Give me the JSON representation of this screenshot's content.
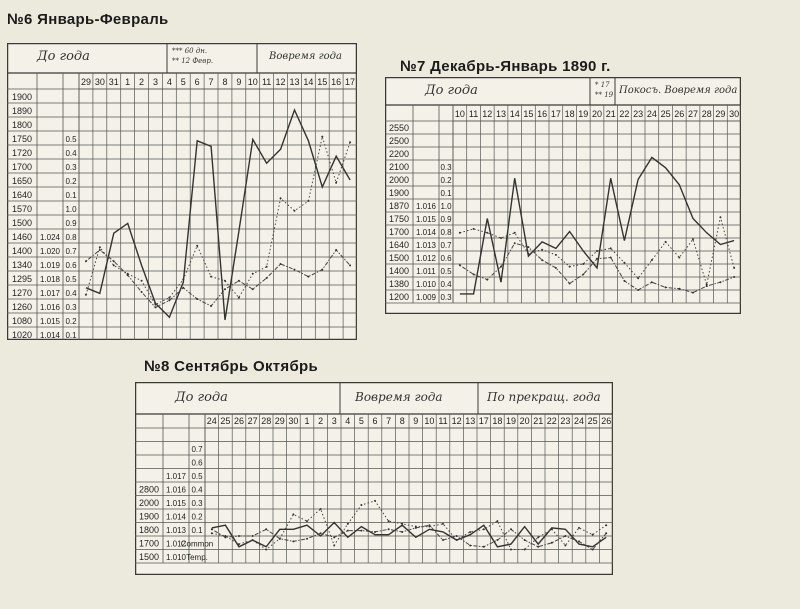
{
  "charts": [
    {
      "title": "№6 Январь-Февраль",
      "header": {
        "cell1": "До года",
        "cell2": "Вовремя года",
        "legend1": "*** 60 дн.",
        "legend2": "** 12 Февр."
      },
      "days": [
        "29",
        "30",
        "31",
        "1",
        "2",
        "3",
        "4",
        "5",
        "6",
        "7",
        "8",
        "9",
        "10",
        "11",
        "12",
        "13",
        "14",
        "15",
        "16",
        "17"
      ],
      "rows": [
        {
          "w": "1900",
          "d": "",
          "p": ""
        },
        {
          "w": "1890",
          "d": "",
          "p": ""
        },
        {
          "w": "1800",
          "d": "",
          "p": ""
        },
        {
          "w": "1750",
          "d": "",
          "p": "0.5"
        },
        {
          "w": "1720",
          "d": "",
          "p": "0.4"
        },
        {
          "w": "1700",
          "d": "",
          "p": "0.3"
        },
        {
          "w": "1650",
          "d": "",
          "p": "0.2"
        },
        {
          "w": "1640",
          "d": "",
          "p": "0.1"
        },
        {
          "w": "1570",
          "d": "",
          "p": "1.0"
        },
        {
          "w": "1500",
          "d": "",
          "p": "0.9"
        },
        {
          "w": "1460",
          "d": "1.024",
          "p": "0.8"
        },
        {
          "w": "1400",
          "d": "1.020",
          "p": "0.7"
        },
        {
          "w": "1340",
          "d": "1.019",
          "p": "0.6"
        },
        {
          "w": "1295",
          "d": "1.018",
          "p": "0.5"
        },
        {
          "w": "1270",
          "d": "1.017",
          "p": "0.4"
        },
        {
          "w": "1260",
          "d": "1.016",
          "p": "0.3"
        },
        {
          "w": "1080",
          "d": "1.015",
          "p": "0.2"
        },
        {
          "w": "1020",
          "d": "1.014",
          "p": "0.1"
        }
      ]
    },
    {
      "title": "№7 Декабрь-Январь 1890 г.",
      "header": {
        "cell1": "До года",
        "cell2": "Покосъ. Вовремя года",
        "legend1": "* 17",
        "legend2": "** 19"
      },
      "days": [
        "10",
        "11",
        "12",
        "13",
        "14",
        "15",
        "16",
        "17",
        "18",
        "19",
        "20",
        "21",
        "22",
        "23",
        "24",
        "25",
        "26",
        "27",
        "28",
        "29",
        "30"
      ],
      "rows": [
        {
          "w": "2550",
          "d": "",
          "p": ""
        },
        {
          "w": "2500",
          "d": "",
          "p": ""
        },
        {
          "w": "2200",
          "d": "",
          "p": ""
        },
        {
          "w": "2100",
          "d": "",
          "p": "0.3"
        },
        {
          "w": "2000",
          "d": "",
          "p": "0.2"
        },
        {
          "w": "1900",
          "d": "",
          "p": "0.1"
        },
        {
          "w": "1870",
          "d": "1.016",
          "p": "1.0"
        },
        {
          "w": "1750",
          "d": "1.015",
          "p": "0.9"
        },
        {
          "w": "1700",
          "d": "1.014",
          "p": "0.8"
        },
        {
          "w": "1640",
          "d": "1.013",
          "p": "0.7"
        },
        {
          "w": "1500",
          "d": "1.012",
          "p": "0.6"
        },
        {
          "w": "1400",
          "d": "1.011",
          "p": "0.5"
        },
        {
          "w": "1380",
          "d": "1.010",
          "p": "0.4"
        },
        {
          "w": "1200",
          "d": "1.009",
          "p": "0.3"
        }
      ]
    },
    {
      "title": "№8 Сентябрь Октябрь",
      "header": {
        "cell1": "До года",
        "cell2": "Вовремя года",
        "cell3": "По прекращ. года"
      },
      "days": [
        "24",
        "25",
        "26",
        "27",
        "28",
        "29",
        "30",
        "1",
        "2",
        "3",
        "4",
        "5",
        "6",
        "7",
        "8",
        "9",
        "10",
        "11",
        "12",
        "13",
        "17",
        "18",
        "19",
        "20",
        "21",
        "22",
        "23",
        "24",
        "25",
        "26"
      ],
      "rows": [
        {
          "w": "",
          "d": "",
          "p": ""
        },
        {
          "w": "",
          "d": "",
          "p": "0.7"
        },
        {
          "w": "",
          "d": "",
          "p": "0.6"
        },
        {
          "w": "",
          "d": "1.017",
          "p": "0.5"
        },
        {
          "w": "2800",
          "d": "1.016",
          "p": "0.4"
        },
        {
          "w": "2000",
          "d": "1.015",
          "p": "0.3"
        },
        {
          "w": "1900",
          "d": "1.014",
          "p": "0.2"
        },
        {
          "w": "1800",
          "d": "1.013",
          "p": "0.1"
        },
        {
          "w": "1700",
          "d": "1.012",
          "p": "Common"
        },
        {
          "w": "1500",
          "d": "1.010",
          "p": "Temp."
        }
      ]
    }
  ],
  "chart_data": [
    {
      "type": "line",
      "title": "№6 Январь-Февраль",
      "categories": [
        "29",
        "30",
        "31",
        "1",
        "2",
        "3",
        "4",
        "5",
        "6",
        "7",
        "8",
        "9",
        "10",
        "11",
        "12",
        "13",
        "14",
        "15",
        "16",
        "17"
      ],
      "series": [
        {
          "style": "solid",
          "values": [
            14.2,
            14.6,
            10.3,
            9.6,
            12.6,
            15.3,
            16.3,
            13.8,
            3.7,
            4.1,
            16.5,
            10.2,
            3.6,
            5.3,
            4.3,
            1.5,
            3.7,
            7.0,
            4.8,
            6.5
          ]
        },
        {
          "style": "dotted",
          "values": [
            14.7,
            11.3,
            12.6,
            13.2,
            13.7,
            15.4,
            14.9,
            13.6,
            11.2,
            13.4,
            13.7,
            14.9,
            13.2,
            12.7,
            7.8,
            8.7,
            8.0,
            3.4,
            6.7,
            3.8
          ]
        },
        {
          "style": "dashdot",
          "values": [
            12.3,
            11.5,
            12.3,
            13.3,
            14.5,
            15.6,
            15.1,
            14.2,
            15.0,
            15.5,
            14.3,
            13.7,
            14.3,
            13.5,
            12.5,
            12.9,
            13.4,
            12.9,
            11.5,
            12.6
          ]
        }
      ]
    },
    {
      "type": "line",
      "title": "№7 Декабрь-Январь 1890 г.",
      "categories": [
        "10",
        "11",
        "12",
        "13",
        "14",
        "15",
        "16",
        "17",
        "18",
        "19",
        "20",
        "21",
        "22",
        "23",
        "24",
        "25",
        "26",
        "27",
        "28",
        "29",
        "30"
      ],
      "series": [
        {
          "style": "solid",
          "values": [
            13.3,
            13.3,
            7.5,
            12.4,
            4.4,
            10.4,
            9.3,
            9.8,
            8.5,
            10.0,
            11.3,
            4.4,
            9.2,
            4.5,
            2.8,
            3.6,
            4.9,
            7.5,
            8.6,
            9.5,
            9.2
          ]
        },
        {
          "style": "dotted",
          "values": [
            8.6,
            8.3,
            8.6,
            9.0,
            8.6,
            10.2,
            9.9,
            10.3,
            11.2,
            11.0,
            10.0,
            9.8,
            10.9,
            12.1,
            10.7,
            9.3,
            10.5,
            9.1,
            12.6,
            7.4,
            11.3
          ]
        },
        {
          "style": "dashdot",
          "values": [
            11.1,
            11.8,
            12.2,
            11.2,
            9.4,
            9.7,
            10.7,
            11.3,
            12.5,
            11.8,
            10.6,
            10.5,
            12.3,
            13.0,
            12.4,
            12.8,
            12.9,
            13.2,
            12.7,
            12.4,
            12.0
          ]
        }
      ]
    },
    {
      "type": "line",
      "title": "№8 Сентябрь Октябрь",
      "categories": [
        "24",
        "25",
        "26",
        "27",
        "28",
        "29",
        "30",
        "1",
        "2",
        "3",
        "4",
        "5",
        "6",
        "7",
        "8",
        "9",
        "10",
        "11",
        "12",
        "13",
        "17",
        "18",
        "19",
        "20",
        "21",
        "22",
        "23",
        "24",
        "25",
        "26"
      ],
      "series": [
        {
          "style": "solid",
          "values": [
            7.4,
            7.2,
            8.8,
            8.3,
            8.8,
            7.5,
            7.5,
            7.2,
            8.0,
            7.0,
            8.1,
            7.3,
            7.9,
            7.9,
            7.2,
            8.1,
            7.5,
            7.7,
            8.3,
            7.9,
            7.2,
            8.8,
            8.6,
            7.3,
            8.6,
            7.4,
            7.5,
            8.6,
            8.8,
            8.1
          ]
        },
        {
          "style": "dotted",
          "values": [
            7.8,
            8.0,
            8.6,
            8.3,
            9.0,
            8.2,
            6.4,
            6.9,
            6.0,
            8.7,
            7.1,
            5.7,
            5.4,
            6.9,
            7.1,
            7.3,
            7.3,
            7.1,
            8.3,
            7.7,
            7.5,
            6.9,
            9.0,
            9.0,
            8.1,
            7.5,
            8.7,
            7.4,
            7.9,
            7.2
          ]
        },
        {
          "style": "dashdot",
          "values": [
            7.5,
            8.1,
            8.0,
            8.0,
            7.5,
            8.2,
            8.4,
            8.2,
            7.8,
            8.1,
            7.6,
            7.6,
            7.7,
            7.5,
            7.7,
            7.4,
            7.2,
            8.3,
            8.0,
            8.7,
            8.8,
            8.3,
            7.5,
            8.3,
            8.8,
            8.5,
            8.0,
            8.4,
            9.0,
            7.8
          ]
        }
      ]
    }
  ]
}
